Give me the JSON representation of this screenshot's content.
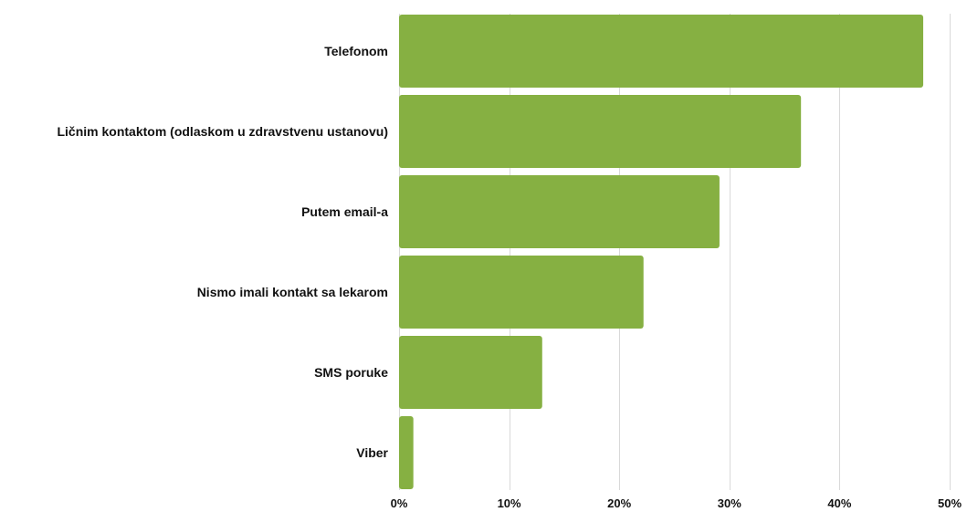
{
  "chart_data": {
    "type": "bar",
    "orientation": "horizontal",
    "title": "",
    "xlabel": "",
    "ylabel": "",
    "categories": [
      "Telefonom",
      "Ličnim kontaktom (odlaskom u zdravstvenu ustanovu)",
      "Putem email-a",
      "Nismo imali kontakt sa lekarom",
      "SMS poruke",
      "Viber"
    ],
    "values": [
      47.6,
      36.5,
      29.1,
      22.2,
      13.0,
      1.3
    ],
    "xlim": [
      0,
      50
    ],
    "x_ticks": [
      0,
      10,
      20,
      30,
      40,
      50
    ],
    "x_tick_labels": [
      "0%",
      "10%",
      "20%",
      "30%",
      "40%",
      "50%"
    ],
    "grid": true,
    "legend": "none",
    "bar_color": "#86b042",
    "grid_color": "#d9d9d9",
    "text_color": "#111111"
  }
}
